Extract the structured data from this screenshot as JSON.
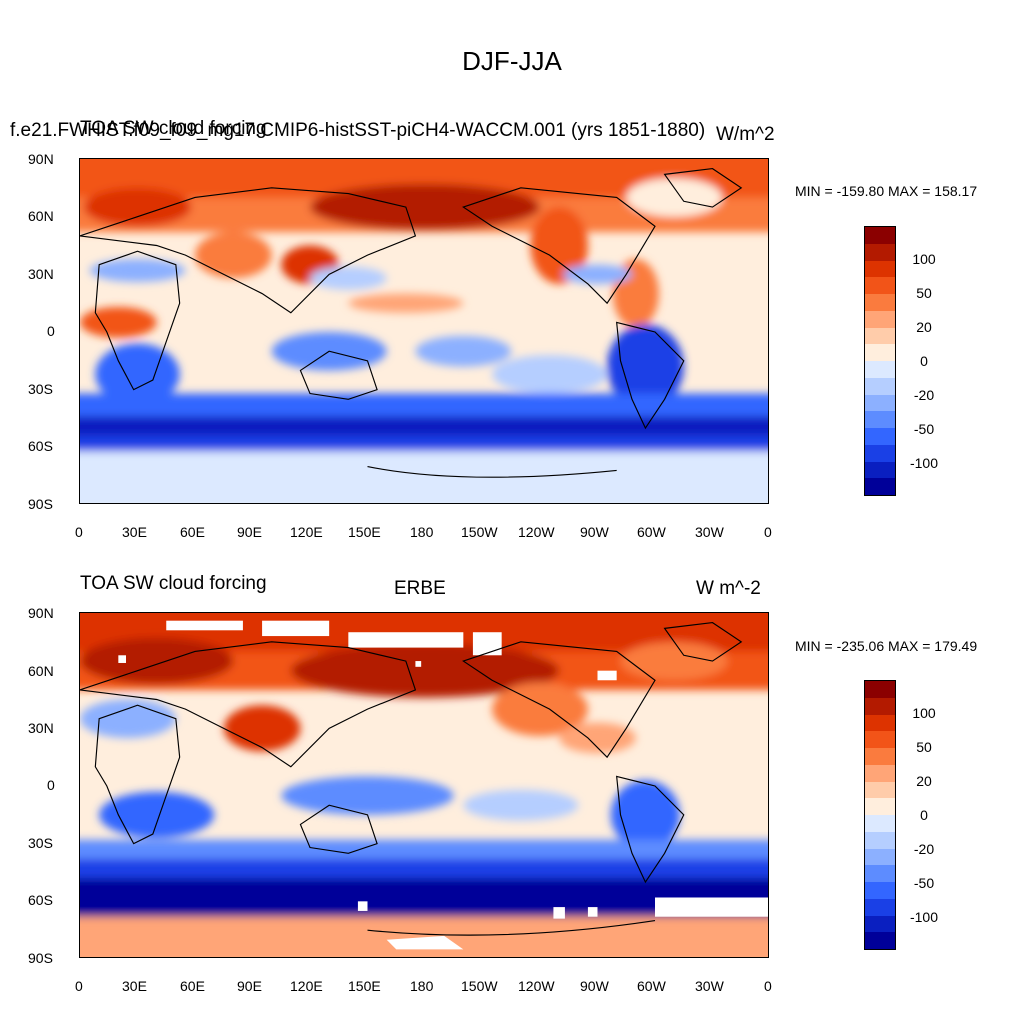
{
  "figure": {
    "title": "DJF-JJA"
  },
  "panels": [
    {
      "left_title": "TOA SW cloud forcing",
      "case_title": "f.e21.FWHIST.f09_f09_mg17.CMIP6-histSST-piCH4-WACCM.001 (yrs 1851-1880)",
      "center_title": "",
      "units": "W/m^2",
      "minmax": "MIN = -159.80 MAX = 158.17"
    },
    {
      "left_title": "TOA SW cloud forcing",
      "case_title": "",
      "center_title": "ERBE",
      "units": "W m^-2",
      "minmax": "MIN = -235.06 MAX = 179.49"
    }
  ],
  "axes": {
    "lat_labels": [
      "90N",
      "60N",
      "30N",
      "0",
      "30S",
      "60S",
      "90S"
    ],
    "lon_labels": [
      "0",
      "30E",
      "60E",
      "90E",
      "120E",
      "150E",
      "180",
      "150W",
      "120W",
      "90W",
      "60W",
      "30W",
      "0"
    ]
  },
  "colorbar": {
    "labels": [
      "100",
      "50",
      "20",
      "0",
      "-20",
      "-50",
      "-100"
    ],
    "colors": [
      "#8b0000",
      "#b31a00",
      "#dd3300",
      "#f25418",
      "#fa7b3e",
      "#ffa577",
      "#ffccaa",
      "#ffeedd",
      "#dce9ff",
      "#b5ceff",
      "#8cb0ff",
      "#5d8cff",
      "#3366ff",
      "#1a40e6",
      "#0a1fc0",
      "#000099"
    ]
  },
  "chart_data": [
    {
      "type": "heatmap",
      "title": "DJF-JJA",
      "subtitle": "TOA SW cloud forcing",
      "case": "f.e21.FWHIST.f09_f09_mg17.CMIP6-histSST-piCH4-WACCM.001 (yrs 1851-1880)",
      "units": "W/m^2",
      "xlabel": "",
      "ylabel": "",
      "xlim": [
        0,
        360
      ],
      "ylim": [
        -90,
        90
      ],
      "contour_levels": [
        -100,
        -50,
        -20,
        0,
        20,
        50,
        100
      ],
      "min": -159.8,
      "max": 158.17
    },
    {
      "type": "heatmap",
      "title": "ERBE",
      "subtitle": "TOA SW cloud forcing",
      "units": "W m^-2",
      "xlabel": "",
      "ylabel": "",
      "xlim": [
        0,
        360
      ],
      "ylim": [
        -90,
        90
      ],
      "contour_levels": [
        -100,
        -50,
        -20,
        0,
        20,
        50,
        100
      ],
      "min": -235.06,
      "max": 179.49
    }
  ]
}
